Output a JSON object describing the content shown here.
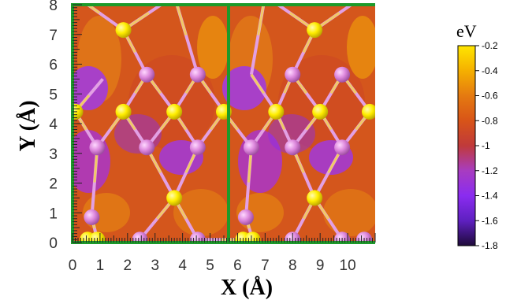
{
  "chart_data": {
    "type": "heatmap",
    "title": "",
    "xlabel": "X (Å)",
    "ylabel": "Y (Å)",
    "xlim": [
      0,
      11
    ],
    "ylim": [
      0,
      8
    ],
    "x_ticks": [
      "0",
      "1",
      "2",
      "3",
      "4",
      "5",
      "6",
      "7",
      "8",
      "9",
      "10"
    ],
    "y_ticks": [
      "0",
      "1",
      "2",
      "3",
      "4",
      "5",
      "6",
      "7",
      "8"
    ],
    "colorbar": {
      "title": "eV",
      "range": [
        -1.8,
        -0.2
      ],
      "ticks": [
        "-0.2",
        "-0.4",
        "-0.6",
        "-0.8",
        "-1",
        "-1.2",
        "-1.4",
        "-1.6",
        "-1.8"
      ],
      "colors": [
        "#ffe600",
        "#f5b000",
        "#e57a10",
        "#d85418",
        "#c03a3a",
        "#a83cc0",
        "#8a2cf0",
        "#5e20c0",
        "#1e0a3a"
      ]
    },
    "atoms": {
      "yellow": [
        {
          "x": 1.85,
          "y": 7.15
        },
        {
          "x": 3.7,
          "y": 8.3
        },
        {
          "x": 0.1,
          "y": 4.4
        },
        {
          "x": 1.85,
          "y": 4.4
        },
        {
          "x": 3.7,
          "y": 4.4
        },
        {
          "x": 5.5,
          "y": 4.4
        },
        {
          "x": 3.7,
          "y": 1.5
        },
        {
          "x": 0.55,
          "y": 0.1
        },
        {
          "x": 0.9,
          "y": 0.1
        },
        {
          "x": 8.8,
          "y": 7.15
        },
        {
          "x": 7.0,
          "y": 8.3
        },
        {
          "x": 7.4,
          "y": 4.4
        },
        {
          "x": 9.0,
          "y": 4.4
        },
        {
          "x": 10.8,
          "y": 4.4
        },
        {
          "x": 10.6,
          "y": 8.3
        },
        {
          "x": 8.8,
          "y": 1.5
        },
        {
          "x": 6.2,
          "y": 0.1
        },
        {
          "x": 6.55,
          "y": 0.1
        }
      ],
      "pink": [
        {
          "x": 0.1,
          "y": 8.3
        },
        {
          "x": 2.7,
          "y": 5.65
        },
        {
          "x": 4.55,
          "y": 5.65
        },
        {
          "x": 0.9,
          "y": 3.2
        },
        {
          "x": 2.7,
          "y": 3.2
        },
        {
          "x": 4.55,
          "y": 3.2
        },
        {
          "x": 0.7,
          "y": 0.85
        },
        {
          "x": 2.45,
          "y": 0.1
        },
        {
          "x": 4.55,
          "y": 0.1
        },
        {
          "x": 8.0,
          "y": 5.65
        },
        {
          "x": 9.8,
          "y": 5.65
        },
        {
          "x": 6.5,
          "y": 3.2
        },
        {
          "x": 8.0,
          "y": 3.2
        },
        {
          "x": 9.8,
          "y": 3.2
        },
        {
          "x": 6.3,
          "y": 0.85
        },
        {
          "x": 8.0,
          "y": 0.1
        },
        {
          "x": 9.8,
          "y": 0.1
        },
        {
          "x": 10.6,
          "y": 0.1
        }
      ],
      "bonds": [
        [
          1.85,
          7.15,
          3.7,
          8.3
        ],
        [
          1.85,
          7.15,
          2.7,
          5.65
        ],
        [
          3.7,
          8.3,
          4.55,
          5.65
        ],
        [
          2.7,
          5.65,
          1.85,
          4.4
        ],
        [
          2.7,
          5.65,
          3.7,
          4.4
        ],
        [
          4.55,
          5.65,
          3.7,
          4.4
        ],
        [
          4.55,
          5.65,
          5.5,
          4.4
        ],
        [
          0.1,
          4.4,
          0.9,
          3.2
        ],
        [
          1.85,
          4.4,
          0.9,
          3.2
        ],
        [
          1.85,
          4.4,
          2.7,
          3.2
        ],
        [
          3.7,
          4.4,
          2.7,
          3.2
        ],
        [
          3.7,
          4.4,
          4.55,
          3.2
        ],
        [
          5.5,
          4.4,
          4.55,
          3.2
        ],
        [
          2.7,
          3.2,
          3.7,
          1.5
        ],
        [
          4.55,
          3.2,
          3.7,
          1.5
        ],
        [
          3.7,
          1.5,
          2.45,
          0.1
        ],
        [
          3.7,
          1.5,
          4.55,
          0.1
        ],
        [
          0.9,
          3.2,
          0.7,
          0.85
        ],
        [
          0.7,
          0.85,
          0.9,
          0.1
        ],
        [
          0.1,
          8.3,
          1.85,
          7.15
        ],
        [
          8.8,
          7.15,
          7.0,
          8.3
        ],
        [
          8.8,
          7.15,
          8.0,
          5.65
        ],
        [
          8.8,
          7.15,
          10.6,
          8.3
        ],
        [
          8.0,
          5.65,
          7.4,
          4.4
        ],
        [
          8.0,
          5.65,
          9.0,
          4.4
        ],
        [
          9.8,
          5.65,
          9.0,
          4.4
        ],
        [
          9.8,
          5.65,
          10.8,
          4.4
        ],
        [
          7.4,
          4.4,
          6.5,
          3.2
        ],
        [
          7.4,
          4.4,
          8.0,
          3.2
        ],
        [
          9.0,
          4.4,
          8.0,
          3.2
        ],
        [
          9.0,
          4.4,
          9.8,
          3.2
        ],
        [
          10.8,
          4.4,
          9.8,
          3.2
        ],
        [
          8.0,
          3.2,
          8.8,
          1.5
        ],
        [
          9.8,
          3.2,
          8.8,
          1.5
        ],
        [
          8.8,
          1.5,
          8.0,
          0.1
        ],
        [
          8.8,
          1.5,
          9.8,
          0.1
        ],
        [
          6.5,
          3.2,
          6.3,
          0.85
        ],
        [
          6.3,
          0.85,
          6.55,
          0.1
        ],
        [
          5.5,
          4.4,
          6.5,
          3.2
        ],
        [
          6.2,
          0.1,
          4.55,
          0.1
        ],
        [
          7.0,
          8.3,
          6.5,
          5.65
        ],
        [
          6.5,
          5.65,
          7.4,
          4.4
        ],
        [
          0.1,
          4.4,
          1.1,
          5.5
        ]
      ]
    },
    "colors": {
      "frame_green": "#1d9a2a",
      "yellow_atom": "#ffee00",
      "pink_atom": "#dd88dd",
      "pink_bond": "#e2a0e4"
    }
  }
}
